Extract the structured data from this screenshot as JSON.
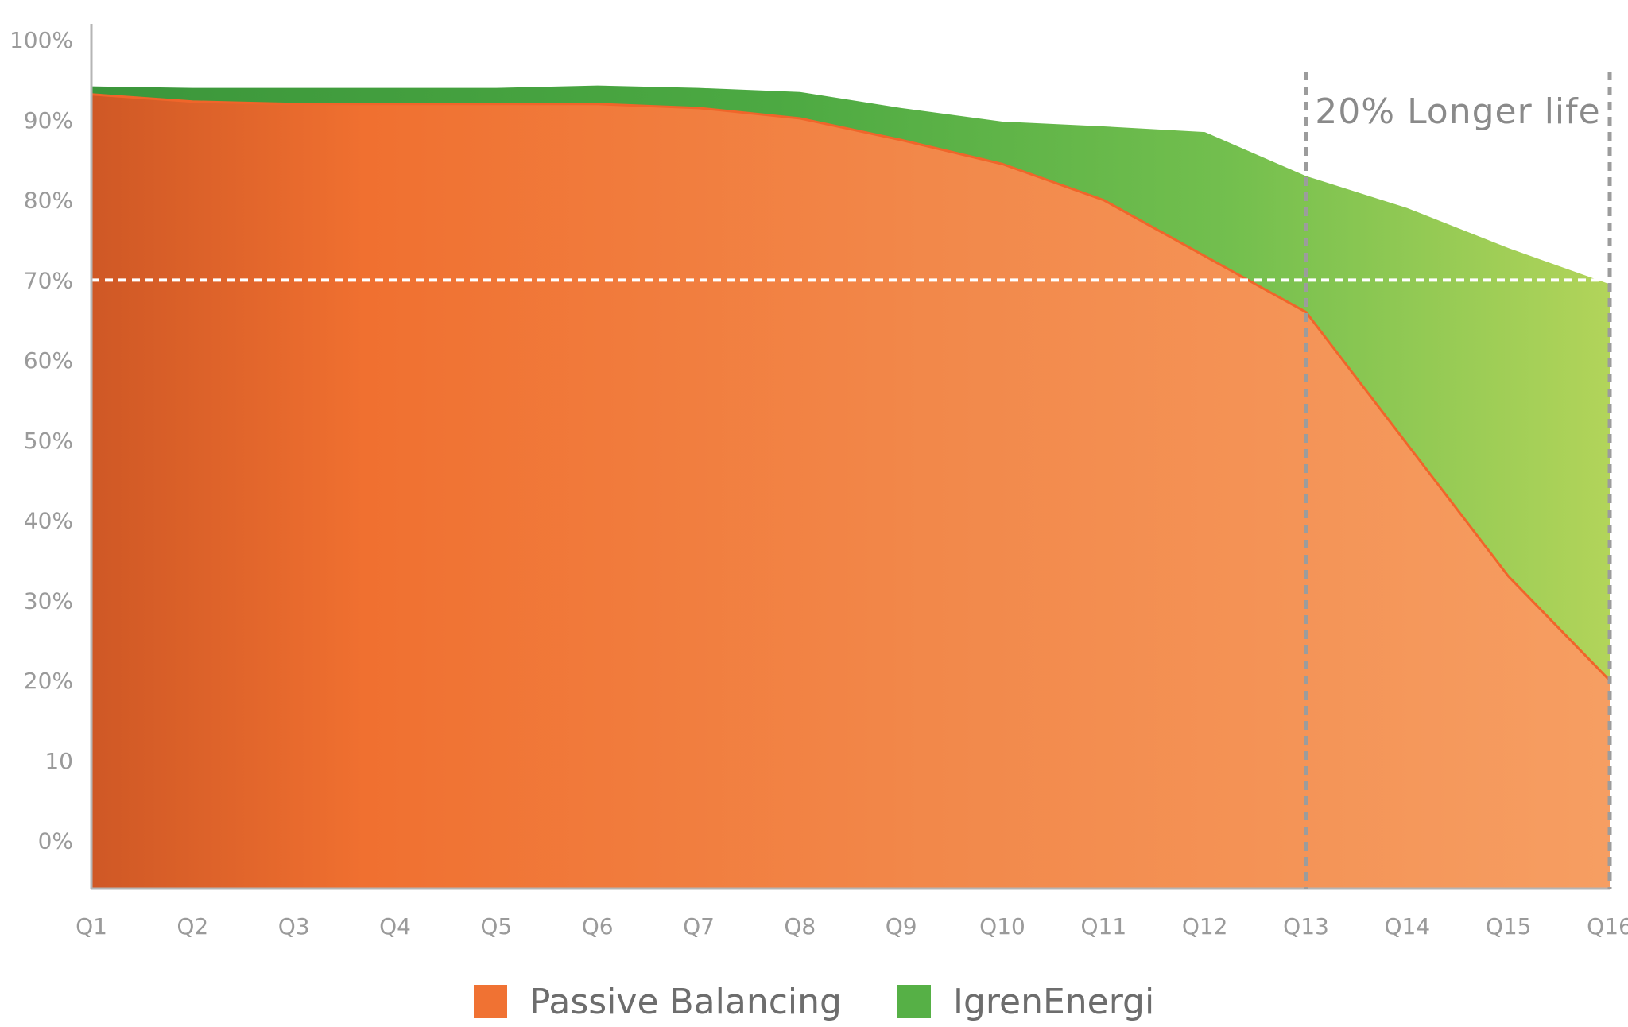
{
  "chart_data": {
    "type": "area",
    "title": "",
    "xlabel": "",
    "ylabel": "",
    "categories": [
      "Q1",
      "Q2",
      "Q3",
      "Q4",
      "Q5",
      "Q6",
      "Q7",
      "Q8",
      "Q9",
      "Q10",
      "Q11",
      "Q12",
      "Q13",
      "Q14",
      "Q15",
      "Q16"
    ],
    "y_tick_labels": [
      "100%",
      "90%",
      "80%",
      "70%",
      "60%",
      "50%",
      "40%",
      "30%",
      "20%",
      "10",
      "0%"
    ],
    "y_tick_values": [
      100,
      90,
      80,
      70,
      60,
      50,
      40,
      30,
      20,
      10,
      0
    ],
    "ylim": [
      -6,
      103
    ],
    "series": [
      {
        "name": "Passive Balancing",
        "color": "#f07233",
        "values": [
          93.2,
          92.3,
          92.0,
          92.0,
          92.0,
          92.0,
          91.5,
          90.2,
          87.5,
          84.5,
          80.0,
          73.0,
          66.0,
          49.5,
          33.0,
          20.0
        ]
      },
      {
        "name": "IgrenEnergi",
        "color": "#56b046",
        "values": [
          94.2,
          94.0,
          94.0,
          94.0,
          94.0,
          94.3,
          94.0,
          93.5,
          91.5,
          89.8,
          89.2,
          88.5,
          83.0,
          79.0,
          74.0,
          69.5
        ]
      }
    ],
    "threshold": {
      "value": 70,
      "style": "dashed",
      "color": "#ffffff"
    },
    "annotations": [
      {
        "text": "20% Longer life",
        "x_from": "Q13",
        "x_to": "Q16"
      }
    ],
    "grid": false,
    "legend_position": "bottom-center"
  },
  "colors": {
    "orange_dark": "#d15a27",
    "orange_mid": "#f07233",
    "orange_light": "#f6a066",
    "green_dark": "#3b9a3b",
    "green_mid": "#6bbd4a",
    "green_light": "#b2d45a",
    "axis": "#b5b5b5",
    "tick_text": "#9a9a9a"
  }
}
